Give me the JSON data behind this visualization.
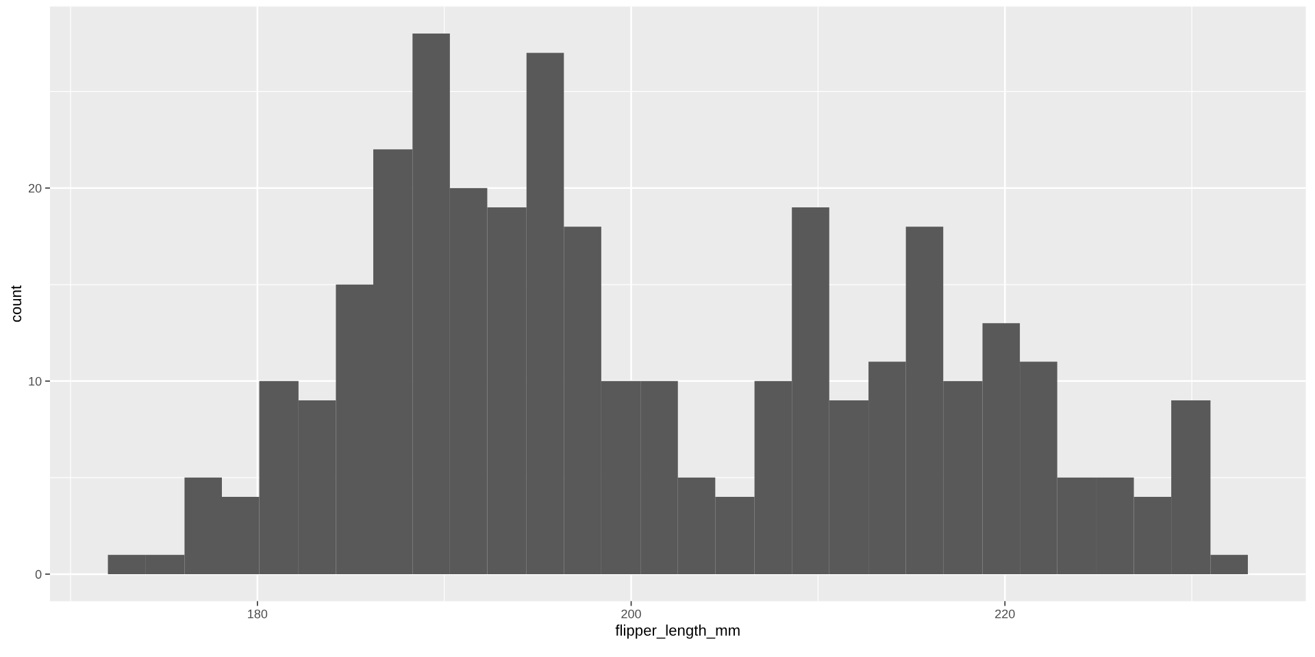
{
  "chart_data": {
    "type": "histogram",
    "xlabel": "flipper_length_mm",
    "ylabel": "count",
    "color": "#595959",
    "bins": [
      172.0,
      174.0,
      176.1,
      178.1,
      180.1,
      182.2,
      184.2,
      186.2,
      188.3,
      190.3,
      192.3,
      194.4,
      196.4,
      198.4,
      200.5,
      202.5,
      204.5,
      206.6,
      208.6,
      210.6,
      212.7,
      214.7,
      216.7,
      218.8,
      220.8,
      222.8,
      224.9,
      226.9,
      228.9,
      231.0,
      233.0
    ],
    "values": [
      1,
      1,
      5,
      4,
      10,
      9,
      15,
      22,
      28,
      20,
      19,
      27,
      18,
      10,
      10,
      5,
      4,
      10,
      19,
      9,
      11,
      18,
      10,
      13,
      11,
      5,
      5,
      4,
      9,
      1
    ],
    "xlim": [
      168.9,
      236.1
    ],
    "ylim": [
      -1.4,
      29.4
    ],
    "xticks": [
      180,
      200,
      220
    ],
    "yticks": [
      0,
      10,
      20
    ],
    "grid": true,
    "legend": false
  }
}
